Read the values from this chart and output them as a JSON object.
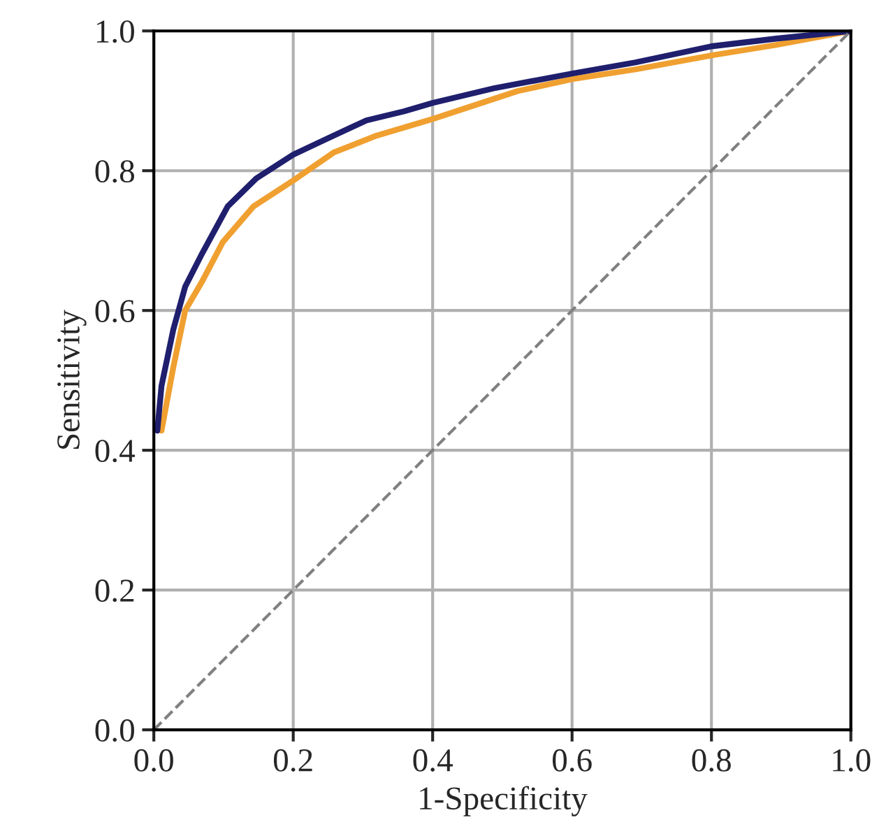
{
  "chart_data": {
    "type": "line",
    "xlabel": "1-Specificity",
    "ylabel": "Sensitivity",
    "xlim": [
      0,
      1
    ],
    "ylim": [
      0,
      1
    ],
    "xticks": [
      {
        "value": 0,
        "label": "0.0"
      },
      {
        "value": 0.2,
        "label": "0.2"
      },
      {
        "value": 0.4,
        "label": "0.4"
      },
      {
        "value": 0.6,
        "label": "0.6"
      },
      {
        "value": 0.8,
        "label": "0.8"
      },
      {
        "value": 1,
        "label": "1.0"
      }
    ],
    "yticks": [
      {
        "value": 0,
        "label": "0.0"
      },
      {
        "value": 0.2,
        "label": "0.2"
      },
      {
        "value": 0.4,
        "label": "0.4"
      },
      {
        "value": 0.6,
        "label": "0.6"
      },
      {
        "value": 0.8,
        "label": "0.8"
      },
      {
        "value": 1,
        "label": "1.0"
      }
    ],
    "grid": true,
    "legend": false,
    "series": [
      {
        "color": "#f0a030",
        "x": [
          0.011,
          0.028,
          0.045,
          0.069,
          0.099,
          0.143,
          0.2,
          0.258,
          0.319,
          0.4,
          0.522,
          0.6,
          0.691,
          0.8,
          0.893,
          1
        ],
        "values": [
          0.428,
          0.519,
          0.6,
          0.641,
          0.698,
          0.749,
          0.786,
          0.826,
          0.85,
          0.874,
          0.914,
          0.931,
          0.945,
          0.965,
          0.98,
          1
        ]
      },
      {
        "color": "#1f1f6e",
        "x": [
          0.005,
          0.011,
          0.028,
          0.045,
          0.069,
          0.106,
          0.147,
          0.2,
          0.251,
          0.305,
          0.359,
          0.4,
          0.488,
          0.6,
          0.691,
          0.8,
          0.893,
          1
        ],
        "values": [
          0.428,
          0.492,
          0.573,
          0.634,
          0.681,
          0.749,
          0.789,
          0.823,
          0.847,
          0.872,
          0.885,
          0.897,
          0.918,
          0.939,
          0.955,
          0.978,
          0.989,
          1
        ]
      },
      {
        "color": "#808080",
        "line_style": "dashed",
        "x": [
          0,
          1
        ],
        "values": [
          0,
          1
        ]
      }
    ]
  }
}
